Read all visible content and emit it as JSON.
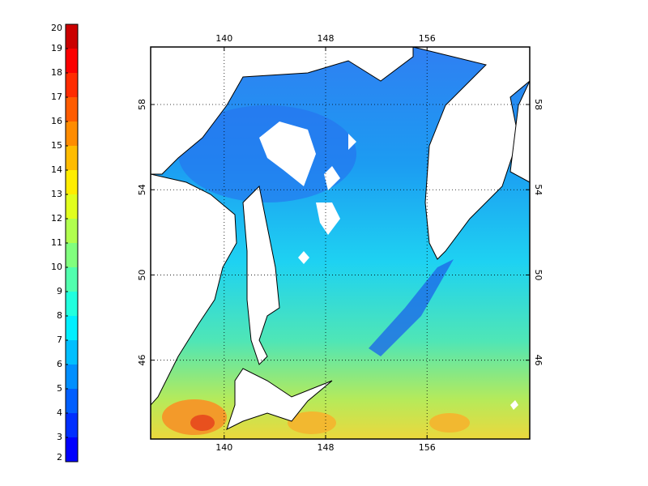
{
  "colorbar": {
    "range": [
      2,
      20
    ],
    "ticks": [
      2,
      3,
      4,
      5,
      6,
      7,
      8,
      9,
      10,
      11,
      12,
      13,
      14,
      15,
      16,
      17,
      18,
      19,
      20
    ]
  },
  "map": {
    "lon_range": [
      134.2,
      164.1
    ],
    "lat_range": [
      42.3,
      60.7
    ],
    "lon_ticks": [
      140,
      148,
      156
    ],
    "lat_ticks": [
      46,
      50,
      54,
      58
    ]
  }
}
